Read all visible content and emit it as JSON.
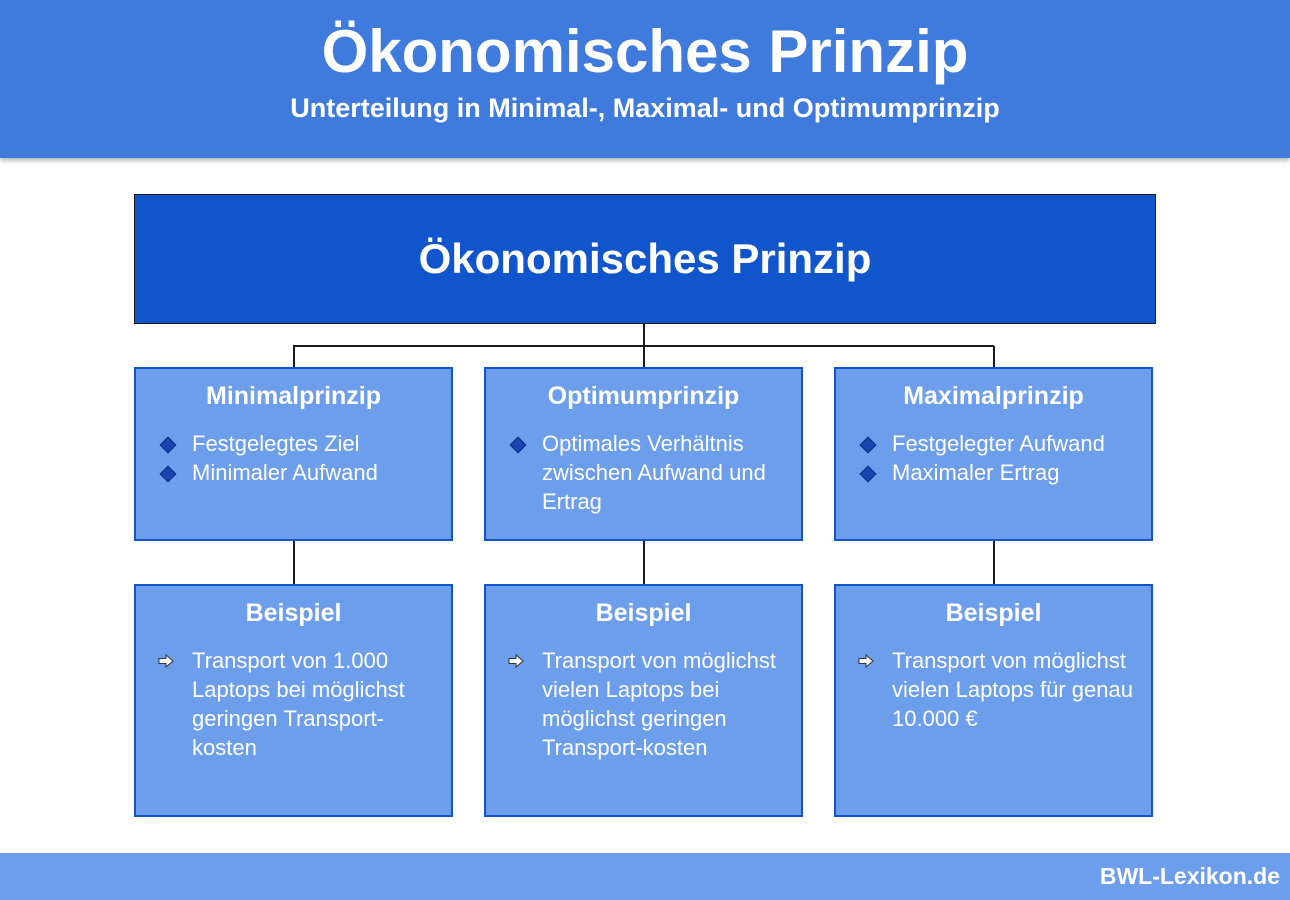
{
  "header": {
    "title": "Ökonomisches Prinzip",
    "subtitle": "Unterteilung in Minimal-, Maximal- und Optimumprinzip"
  },
  "diagram": {
    "root": "Ökonomisches Prinzip",
    "principles": [
      {
        "title": "Minimalprinzip",
        "bullets": [
          "Festgelegtes Ziel",
          "Minimaler Aufwand"
        ]
      },
      {
        "title": "Optimumprinzip",
        "bullets": [
          "Optimales Verhältnis zwischen Aufwand und Ertrag"
        ]
      },
      {
        "title": "Maximalprinzip",
        "bullets": [
          "Festgelegter Aufwand",
          "Maximaler Ertrag"
        ]
      }
    ],
    "examples": [
      {
        "title": "Beispiel",
        "text": "Transport von 1.000 Laptops bei möglichst geringen Transport-kosten"
      },
      {
        "title": "Beispiel",
        "text": "Transport von möglichst vielen Laptops bei möglichst geringen Transport-kosten"
      },
      {
        "title": "Beispiel",
        "text": "Transport von möglichst vielen Laptops für genau 10.000 €"
      }
    ]
  },
  "footer": {
    "brand": "BWL-Lexikon.de"
  },
  "colors": {
    "header_bg": "#3f7bdc",
    "root_bg": "#1155cc",
    "box_bg": "#6d9eeb",
    "box_border": "#1155cc",
    "bullet": "#1a44b0"
  }
}
